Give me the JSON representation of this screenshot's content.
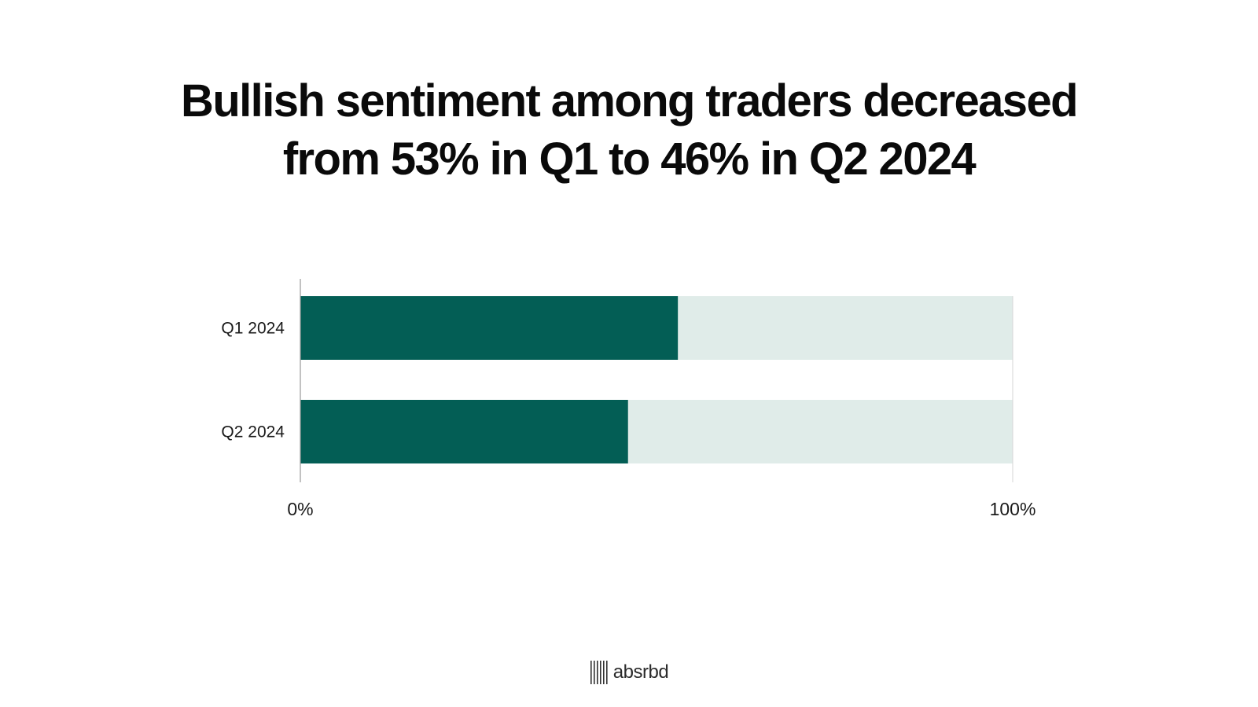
{
  "title": {
    "line1": "Bullish sentiment among traders decreased",
    "line2": "from 53% in Q1 to 46% in Q2 2024"
  },
  "chart_data": {
    "type": "bar",
    "orientation": "horizontal",
    "stacked_with_remainder": true,
    "categories": [
      "Q1 2024",
      "Q2 2024"
    ],
    "values": [
      53,
      46
    ],
    "xlim": [
      0,
      100
    ],
    "x_tick_labels": [
      "0%",
      "100%"
    ],
    "title": "Bullish sentiment among traders decreased from 53% in Q1 to 46% in Q2 2024",
    "xlabel": "",
    "ylabel": "",
    "grid": false,
    "colors": {
      "value": "#035e55",
      "remainder": "#e0ece9",
      "axis": "#999999"
    }
  },
  "footer": {
    "brand": "absrbd",
    "logo_icon": "barcode-logo-icon"
  }
}
